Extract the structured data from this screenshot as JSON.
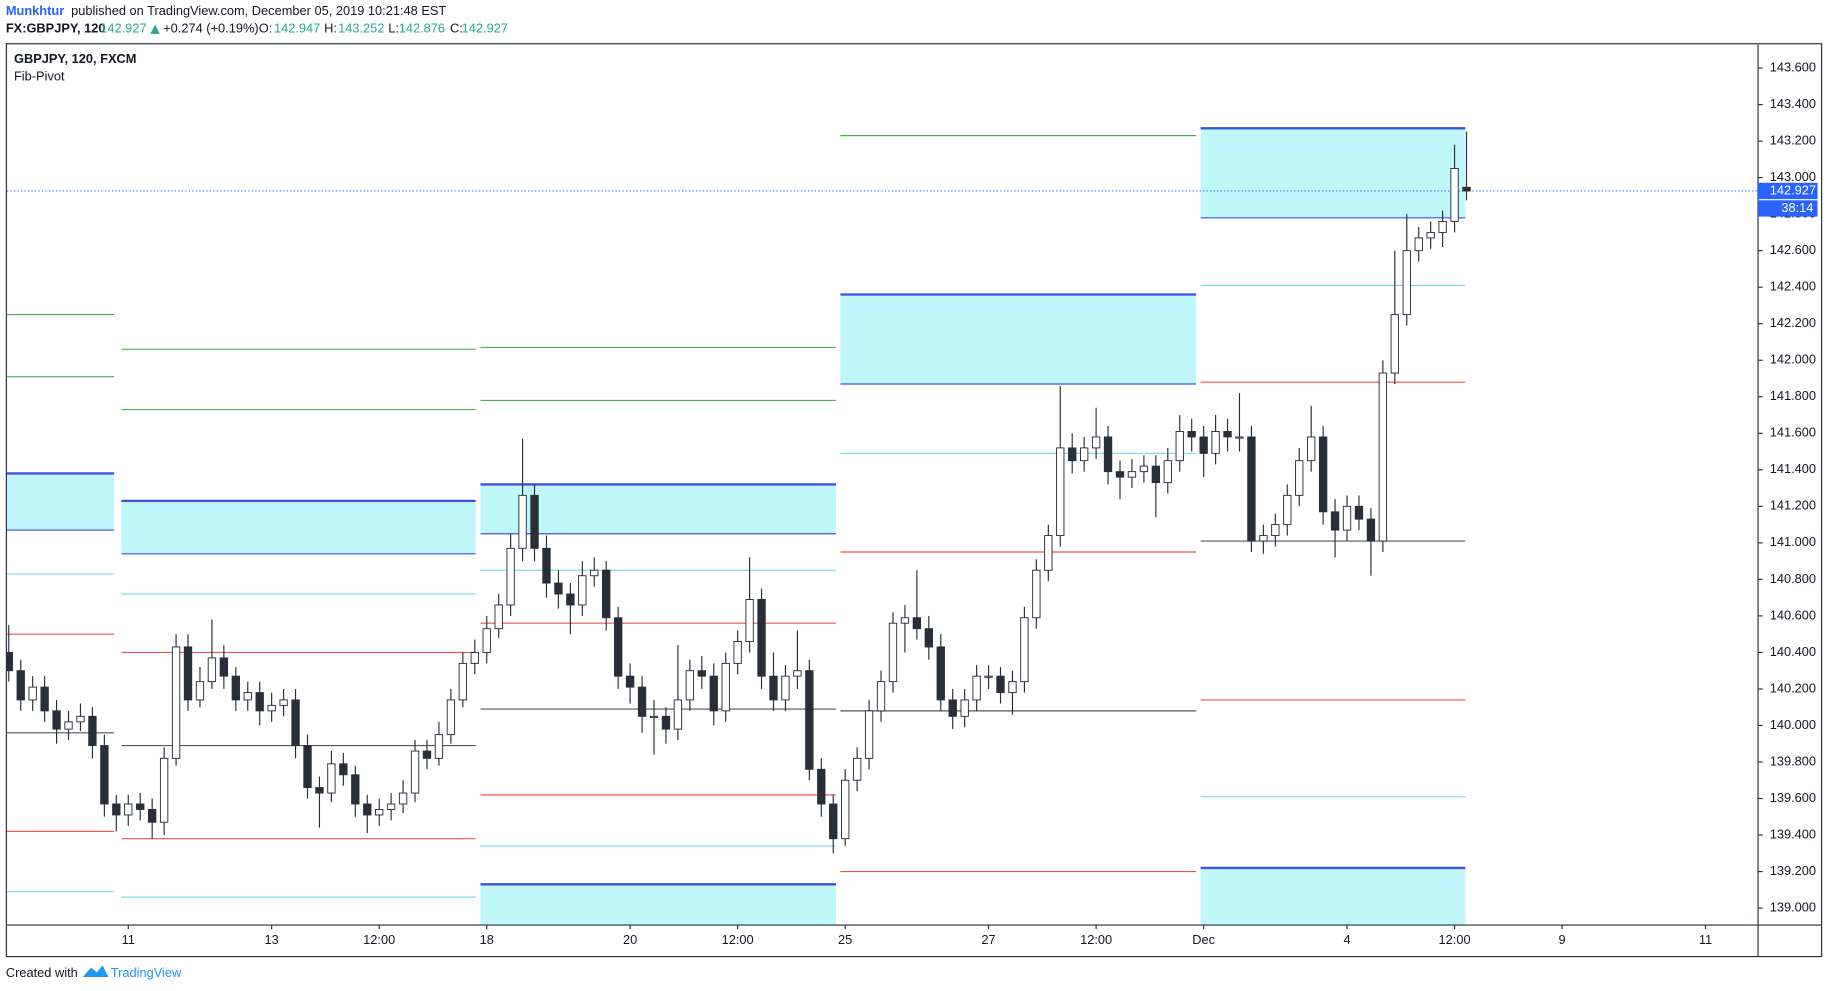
{
  "header": {
    "author": "Munkhtur",
    "published": "published on TradingView.com, December 05, 2019 10:21:48 EST",
    "symbol": "FX:GBPJPY, 120",
    "last": "142.927",
    "change": "+0.274 (+0.19%)",
    "o_label": "O:",
    "open": "142.947",
    "h_label": "H:",
    "high": "143.252",
    "l_label": "L:",
    "low": "142.876",
    "c_label": "C:",
    "close": "142.927"
  },
  "footer": {
    "created": "Created with",
    "brand": "TradingView"
  },
  "chart_data": {
    "type": "candlestick",
    "title": "GBPJPY, 120, FXCM",
    "indicator": "Fib-Pivot",
    "colors": {
      "up": "#ffffff",
      "down": "#2a2e39",
      "wick": "#2a2e39",
      "zone_fill": "#bff7fb",
      "zone_line": "#3f51e5",
      "last": "#2962ff"
    },
    "last_price": 142.927,
    "countdown": "38:14",
    "xlim": [
      -40.6,
      545.6
    ],
    "ylim": [
      138.91,
      143.73
    ],
    "xticks": [
      {
        "value": 0,
        "label": "11"
      },
      {
        "value": 48,
        "label": "13"
      },
      {
        "value": 84,
        "label": "12:00"
      },
      {
        "value": 120,
        "label": "18"
      },
      {
        "value": 168,
        "label": "20"
      },
      {
        "value": 204,
        "label": "12:00"
      },
      {
        "value": 240,
        "label": "25"
      },
      {
        "value": 288,
        "label": "27"
      },
      {
        "value": 324,
        "label": "12:00"
      },
      {
        "value": 360,
        "label": "Dec"
      },
      {
        "value": 408,
        "label": "4"
      },
      {
        "value": 444,
        "label": "12:00"
      },
      {
        "value": 480,
        "label": "9"
      },
      {
        "value": 528,
        "label": "11"
      }
    ],
    "yticks": [
      {
        "value": 139.0,
        "label": "139.000"
      },
      {
        "value": 139.2,
        "label": "139.200"
      },
      {
        "value": 139.4,
        "label": "139.400"
      },
      {
        "value": 139.6,
        "label": "139.600"
      },
      {
        "value": 139.8,
        "label": "139.800"
      },
      {
        "value": 140.0,
        "label": "140.000"
      },
      {
        "value": 140.2,
        "label": "140.200"
      },
      {
        "value": 140.4,
        "label": "140.400"
      },
      {
        "value": 140.6,
        "label": "140.600"
      },
      {
        "value": 140.8,
        "label": "140.800"
      },
      {
        "value": 141.0,
        "label": "141.000"
      },
      {
        "value": 141.2,
        "label": "141.200"
      },
      {
        "value": 141.4,
        "label": "141.400"
      },
      {
        "value": 141.6,
        "label": "141.600"
      },
      {
        "value": 141.8,
        "label": "141.800"
      },
      {
        "value": 142.0,
        "label": "142.000"
      },
      {
        "value": 142.2,
        "label": "142.200"
      },
      {
        "value": 142.4,
        "label": "142.400"
      },
      {
        "value": 142.6,
        "label": "142.600"
      },
      {
        "value": 142.8,
        "label": "142.800"
      },
      {
        "value": 143.0,
        "label": "143.000"
      },
      {
        "value": 143.2,
        "label": "143.200"
      },
      {
        "value": 143.4,
        "label": "143.400"
      },
      {
        "value": 143.6,
        "label": "143.600"
      }
    ],
    "pivots": [
      {
        "x": [
          -40.6,
          -4.7
        ],
        "zones": [
          [
            141.38,
            141.07
          ]
        ],
        "levels": [
          {
            "value": 142.25,
            "color": "#4caf50"
          },
          {
            "value": 141.91,
            "color": "#4caf50"
          },
          {
            "value": 140.83,
            "color": "#7fdde9"
          },
          {
            "value": 140.5,
            "color": "#ef5350"
          },
          {
            "value": 139.96,
            "color": "#555555"
          },
          {
            "value": 139.42,
            "color": "#ef5350"
          },
          {
            "value": 139.09,
            "color": "#7fdde9"
          }
        ]
      },
      {
        "x": [
          -2.3,
          116.3
        ],
        "zones": [
          [
            141.23,
            140.94
          ]
        ],
        "levels": [
          {
            "value": 142.06,
            "color": "#4caf50"
          },
          {
            "value": 141.73,
            "color": "#4caf50"
          },
          {
            "value": 140.72,
            "color": "#7fdde9"
          },
          {
            "value": 140.4,
            "color": "#ef5350"
          },
          {
            "value": 139.89,
            "color": "#555555"
          },
          {
            "value": 139.38,
            "color": "#ef5350"
          },
          {
            "value": 139.06,
            "color": "#7fdde9"
          }
        ]
      },
      {
        "x": [
          117.9,
          236.9
        ],
        "zones": [
          [
            141.32,
            141.05
          ],
          [
            139.13,
            138.84
          ]
        ],
        "levels": [
          {
            "value": 142.07,
            "color": "#4caf50"
          },
          {
            "value": 141.78,
            "color": "#4caf50"
          },
          {
            "value": 140.85,
            "color": "#7fdde9"
          },
          {
            "value": 140.56,
            "color": "#ef5350"
          },
          {
            "value": 140.09,
            "color": "#555555"
          },
          {
            "value": 139.62,
            "color": "#ef5350"
          },
          {
            "value": 139.34,
            "color": "#7fdde9"
          }
        ]
      },
      {
        "x": [
          238.4,
          357.5
        ],
        "zones": [
          [
            142.36,
            141.87
          ]
        ],
        "levels": [
          {
            "value": 143.23,
            "color": "#4caf50"
          },
          {
            "value": 141.49,
            "color": "#7fdde9"
          },
          {
            "value": 140.95,
            "color": "#ef5350"
          },
          {
            "value": 140.08,
            "color": "#555555"
          },
          {
            "value": 139.2,
            "color": "#ef5350"
          }
        ]
      },
      {
        "x": [
          359.0,
          447.6
        ],
        "zones": [
          [
            143.27,
            142.78
          ],
          [
            139.22,
            138.84
          ]
        ],
        "levels": [
          {
            "value": 142.41,
            "color": "#7fdde9"
          },
          {
            "value": 141.88,
            "color": "#ef5350"
          },
          {
            "value": 141.01,
            "color": "#555555"
          },
          {
            "value": 140.14,
            "color": "#ef5350"
          },
          {
            "value": 139.61,
            "color": "#7fdde9"
          }
        ]
      }
    ],
    "x": [
      -40,
      -36,
      -32,
      -28,
      -24,
      -20,
      -16,
      -12,
      -8,
      -4,
      0,
      4,
      8,
      12,
      16,
      20,
      24,
      28,
      32,
      36,
      40,
      44,
      48,
      52,
      56,
      60,
      64,
      68,
      72,
      76,
      80,
      84,
      88,
      92,
      96,
      100,
      104,
      108,
      112,
      116,
      120,
      124,
      128,
      132,
      136,
      140,
      144,
      148,
      152,
      156,
      160,
      164,
      168,
      172,
      176,
      180,
      184,
      188,
      192,
      196,
      200,
      204,
      208,
      212,
      216,
      220,
      224,
      228,
      232,
      236,
      240,
      244,
      248,
      252,
      256,
      260,
      264,
      268,
      272,
      276,
      280,
      284,
      288,
      292,
      296,
      300,
      304,
      308,
      312,
      316,
      320,
      324,
      328,
      332,
      336,
      340,
      344,
      348,
      352,
      356,
      360,
      364,
      368,
      372,
      376,
      380,
      384,
      388,
      392,
      396,
      400,
      404,
      408,
      412,
      416,
      420,
      424,
      428,
      432,
      436,
      440,
      444,
      448
    ],
    "ohlc": [
      [
        140.4,
        140.55,
        140.24,
        140.3
      ],
      [
        140.3,
        140.36,
        140.08,
        140.14
      ],
      [
        140.14,
        140.27,
        140.08,
        140.21
      ],
      [
        140.21,
        140.27,
        140.02,
        140.08
      ],
      [
        140.08,
        140.14,
        139.9,
        139.98
      ],
      [
        139.98,
        140.08,
        139.92,
        140.02
      ],
      [
        140.02,
        140.12,
        139.97,
        140.05
      ],
      [
        140.05,
        140.1,
        139.82,
        139.89
      ],
      [
        139.89,
        139.95,
        139.5,
        139.57
      ],
      [
        139.57,
        139.62,
        139.42,
        139.51
      ],
      [
        139.51,
        139.62,
        139.45,
        139.57
      ],
      [
        139.57,
        139.63,
        139.48,
        139.54
      ],
      [
        139.54,
        139.6,
        139.38,
        139.47
      ],
      [
        139.47,
        139.88,
        139.4,
        139.82
      ],
      [
        139.82,
        140.5,
        139.78,
        140.43
      ],
      [
        140.43,
        140.5,
        140.08,
        140.14
      ],
      [
        140.14,
        140.32,
        140.1,
        140.24
      ],
      [
        140.24,
        140.58,
        140.2,
        140.37
      ],
      [
        140.37,
        140.44,
        140.2,
        140.27
      ],
      [
        140.27,
        140.32,
        140.08,
        140.14
      ],
      [
        140.14,
        140.24,
        140.08,
        140.18
      ],
      [
        140.18,
        140.24,
        140.0,
        140.08
      ],
      [
        140.08,
        140.18,
        140.02,
        140.11
      ],
      [
        140.11,
        140.2,
        140.05,
        140.14
      ],
      [
        140.14,
        140.2,
        139.82,
        139.89
      ],
      [
        139.89,
        139.95,
        139.6,
        139.66
      ],
      [
        139.66,
        139.72,
        139.44,
        139.63
      ],
      [
        139.63,
        139.86,
        139.58,
        139.79
      ],
      [
        139.79,
        139.85,
        139.67,
        139.73
      ],
      [
        139.73,
        139.78,
        139.5,
        139.57
      ],
      [
        139.57,
        139.62,
        139.41,
        139.51
      ],
      [
        139.51,
        139.6,
        139.45,
        139.54
      ],
      [
        139.54,
        139.63,
        139.48,
        139.57
      ],
      [
        139.57,
        139.7,
        139.52,
        139.63
      ],
      [
        139.63,
        139.92,
        139.58,
        139.86
      ],
      [
        139.86,
        139.92,
        139.76,
        139.82
      ],
      [
        139.82,
        140.02,
        139.78,
        139.95
      ],
      [
        139.95,
        140.2,
        139.9,
        140.14
      ],
      [
        140.14,
        140.4,
        140.1,
        140.34
      ],
      [
        140.34,
        140.47,
        140.28,
        140.4
      ],
      [
        140.4,
        140.6,
        140.34,
        140.53
      ],
      [
        140.53,
        140.72,
        140.48,
        140.66
      ],
      [
        140.66,
        141.05,
        140.6,
        140.97
      ],
      [
        140.97,
        141.57,
        140.9,
        141.26
      ],
      [
        141.26,
        141.32,
        140.9,
        140.97
      ],
      [
        140.97,
        141.04,
        140.7,
        140.78
      ],
      [
        140.78,
        140.85,
        140.64,
        140.72
      ],
      [
        140.72,
        140.78,
        140.5,
        140.66
      ],
      [
        140.66,
        140.9,
        140.6,
        140.82
      ],
      [
        140.82,
        140.92,
        140.76,
        140.85
      ],
      [
        140.85,
        140.9,
        140.52,
        140.59
      ],
      [
        140.59,
        140.65,
        140.2,
        140.27
      ],
      [
        140.27,
        140.34,
        140.12,
        140.21
      ],
      [
        140.21,
        140.27,
        139.96,
        140.05
      ],
      [
        140.05,
        140.14,
        139.84,
        140.05
      ],
      [
        140.05,
        140.1,
        139.9,
        139.98
      ],
      [
        139.98,
        140.44,
        139.92,
        140.14
      ],
      [
        140.14,
        140.36,
        140.08,
        140.3
      ],
      [
        140.3,
        140.38,
        140.2,
        140.27
      ],
      [
        140.27,
        140.34,
        140.0,
        140.08
      ],
      [
        140.08,
        140.4,
        140.02,
        140.34
      ],
      [
        140.34,
        140.52,
        140.28,
        140.46
      ],
      [
        140.46,
        140.92,
        140.4,
        140.69
      ],
      [
        140.69,
        140.75,
        140.2,
        140.27
      ],
      [
        140.27,
        140.4,
        140.08,
        140.14
      ],
      [
        140.14,
        140.33,
        140.08,
        140.27
      ],
      [
        140.27,
        140.52,
        140.2,
        140.3
      ],
      [
        140.3,
        140.36,
        139.7,
        139.76
      ],
      [
        139.76,
        139.82,
        139.5,
        139.57
      ],
      [
        139.57,
        139.62,
        139.3,
        139.38
      ],
      [
        139.38,
        139.76,
        139.34,
        139.7
      ],
      [
        139.7,
        139.88,
        139.64,
        139.82
      ],
      [
        139.82,
        140.14,
        139.76,
        140.08
      ],
      [
        140.08,
        140.3,
        140.02,
        140.24
      ],
      [
        140.24,
        140.62,
        140.18,
        140.56
      ],
      [
        140.56,
        140.66,
        140.4,
        140.59
      ],
      [
        140.59,
        140.85,
        140.47,
        140.53
      ],
      [
        140.53,
        140.6,
        140.36,
        140.43
      ],
      [
        140.43,
        140.5,
        140.08,
        140.14
      ],
      [
        140.14,
        140.2,
        139.98,
        140.05
      ],
      [
        140.05,
        140.2,
        139.99,
        140.14
      ],
      [
        140.14,
        140.33,
        140.08,
        140.27
      ],
      [
        140.27,
        140.33,
        140.2,
        140.27
      ],
      [
        140.27,
        140.32,
        140.12,
        140.18
      ],
      [
        140.18,
        140.3,
        140.06,
        140.24
      ],
      [
        140.24,
        140.65,
        140.18,
        140.59
      ],
      [
        140.59,
        140.91,
        140.53,
        140.85
      ],
      [
        140.85,
        141.1,
        140.79,
        141.04
      ],
      [
        141.04,
        141.86,
        140.98,
        141.52
      ],
      [
        141.52,
        141.6,
        141.38,
        141.45
      ],
      [
        141.45,
        141.58,
        141.39,
        141.52
      ],
      [
        141.52,
        141.74,
        141.46,
        141.58
      ],
      [
        141.58,
        141.64,
        141.32,
        141.39
      ],
      [
        141.39,
        141.45,
        141.24,
        141.36
      ],
      [
        141.36,
        141.46,
        141.3,
        141.39
      ],
      [
        141.39,
        141.48,
        141.33,
        141.42
      ],
      [
        141.42,
        141.48,
        141.14,
        141.33
      ],
      [
        141.33,
        141.52,
        141.27,
        141.45
      ],
      [
        141.45,
        141.7,
        141.39,
        141.61
      ],
      [
        141.61,
        141.68,
        141.5,
        141.58
      ],
      [
        141.58,
        141.64,
        141.36,
        141.49
      ],
      [
        141.49,
        141.7,
        141.43,
        141.61
      ],
      [
        141.61,
        141.68,
        141.5,
        141.58
      ],
      [
        141.58,
        141.82,
        141.5,
        141.58
      ],
      [
        141.58,
        141.64,
        140.95,
        141.01
      ],
      [
        141.01,
        141.1,
        140.94,
        141.04
      ],
      [
        141.04,
        141.16,
        140.98,
        141.1
      ],
      [
        141.1,
        141.32,
        141.04,
        141.26
      ],
      [
        141.26,
        141.52,
        141.2,
        141.45
      ],
      [
        141.45,
        141.75,
        141.39,
        141.58
      ],
      [
        141.58,
        141.64,
        141.1,
        141.17
      ],
      [
        141.17,
        141.24,
        140.92,
        141.07
      ],
      [
        141.07,
        141.26,
        141.01,
        141.2
      ],
      [
        141.2,
        141.26,
        141.07,
        141.13
      ],
      [
        141.13,
        141.19,
        140.82,
        141.01
      ],
      [
        141.01,
        142.0,
        140.95,
        141.93
      ],
      [
        141.93,
        142.6,
        141.87,
        142.25
      ],
      [
        142.25,
        142.8,
        142.19,
        142.6
      ],
      [
        142.6,
        142.73,
        142.54,
        142.67
      ],
      [
        142.67,
        142.76,
        142.61,
        142.7
      ],
      [
        142.7,
        142.82,
        142.62,
        142.76
      ],
      [
        142.76,
        143.18,
        142.7,
        143.05
      ],
      [
        142.947,
        143.252,
        142.876,
        142.927
      ]
    ]
  }
}
